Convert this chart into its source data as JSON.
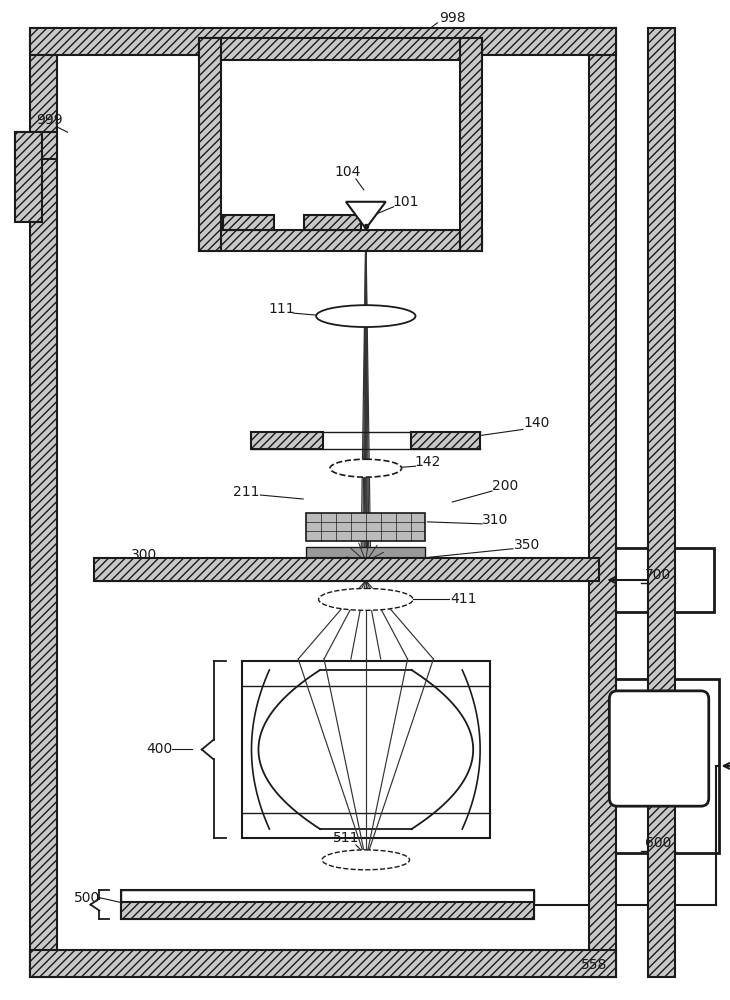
{
  "bg": "#ffffff",
  "lc": "#1a1a1a",
  "hatch_fc": "#c8c8c8",
  "grid_fc": "#bbbbbb",
  "sample_fc": "#999999"
}
